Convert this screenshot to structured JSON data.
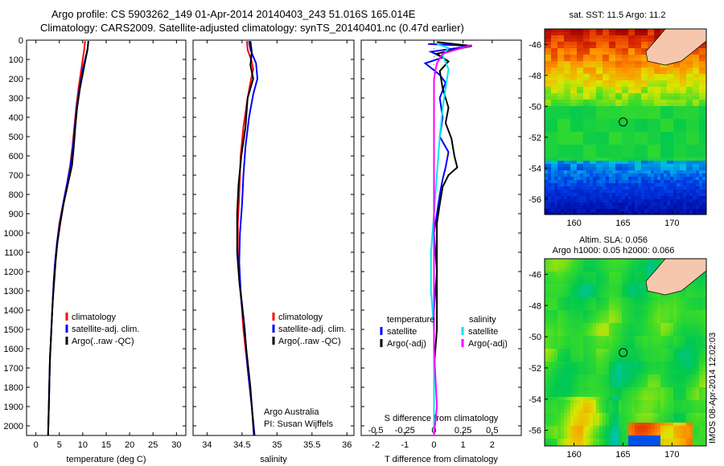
{
  "header": {
    "line1": "Argo profile: CS 5903262_149 01-Apr-2014 20140403_243 51.016S 165.014E",
    "line2": "Climatology: CARS2009. Satellite-adjusted climatology: synTS_20140401.nc (0.47d earlier)"
  },
  "credits": {
    "line1": "Argo Australia",
    "line2": "PI: Susan Wijffels"
  },
  "watermark": "IMOS 08-Apr-2014 12:02:03",
  "colors": {
    "climatology": "#ff0000",
    "satellite": "#0000ff",
    "argo": "#000000",
    "sal_satellite": "#00e5ee",
    "sal_argo": "#ff00ff"
  },
  "depth_ticks": [
    0,
    100,
    200,
    300,
    400,
    500,
    600,
    700,
    800,
    900,
    1000,
    1100,
    1200,
    1300,
    1400,
    1500,
    1600,
    1700,
    1800,
    1900,
    2000
  ],
  "chart_data": [
    {
      "type": "line",
      "id": "temperature",
      "xlabel": "temperature (deg C)",
      "xlim": [
        -2,
        32
      ],
      "ylim": [
        0,
        2050
      ],
      "xticks": [
        0,
        5,
        10,
        15,
        20,
        25,
        30
      ],
      "legend": [
        "climatology",
        "satellite-adj. clim.",
        "Argo(..raw -QC)"
      ],
      "series": [
        {
          "name": "climatology",
          "color": "#ff0000",
          "points": [
            [
              10.5,
              5
            ],
            [
              10.3,
              50
            ],
            [
              9.7,
              150
            ],
            [
              9.1,
              250
            ],
            [
              8.6,
              350
            ],
            [
              8.2,
              450
            ],
            [
              7.8,
              550
            ],
            [
              7.3,
              650
            ],
            [
              6.6,
              750
            ],
            [
              5.8,
              850
            ],
            [
              5.0,
              950
            ],
            [
              4.5,
              1050
            ],
            [
              4.1,
              1150
            ],
            [
              3.8,
              1250
            ],
            [
              3.6,
              1350
            ],
            [
              3.4,
              1450
            ],
            [
              3.2,
              1550
            ],
            [
              3.0,
              1650
            ],
            [
              2.9,
              1750
            ],
            [
              2.8,
              1850
            ],
            [
              2.7,
              1950
            ],
            [
              2.6,
              2050
            ]
          ]
        },
        {
          "name": "satellite-adj. clim.",
          "color": "#0000ff",
          "points": [
            [
              11.2,
              5
            ],
            [
              11.0,
              50
            ],
            [
              10.0,
              150
            ],
            [
              9.3,
              250
            ],
            [
              8.7,
              350
            ],
            [
              8.3,
              450
            ],
            [
              7.9,
              550
            ],
            [
              7.4,
              650
            ],
            [
              6.6,
              750
            ],
            [
              5.8,
              850
            ],
            [
              5.1,
              950
            ],
            [
              4.5,
              1050
            ],
            [
              4.1,
              1150
            ],
            [
              3.8,
              1250
            ],
            [
              3.6,
              1350
            ],
            [
              3.4,
              1450
            ],
            [
              3.2,
              1550
            ],
            [
              3.0,
              1650
            ],
            [
              2.9,
              1750
            ],
            [
              2.8,
              1850
            ],
            [
              2.7,
              1950
            ],
            [
              2.6,
              2050
            ]
          ]
        },
        {
          "name": "Argo(..raw -QC)",
          "color": "#000000",
          "points": [
            [
              11.2,
              5
            ],
            [
              11.0,
              50
            ],
            [
              10.2,
              150
            ],
            [
              9.4,
              250
            ],
            [
              8.8,
              350
            ],
            [
              8.4,
              450
            ],
            [
              8.1,
              550
            ],
            [
              7.7,
              650
            ],
            [
              6.8,
              750
            ],
            [
              5.9,
              850
            ],
            [
              5.2,
              950
            ],
            [
              4.6,
              1050
            ],
            [
              4.2,
              1150
            ],
            [
              3.9,
              1250
            ],
            [
              3.6,
              1350
            ],
            [
              3.4,
              1450
            ],
            [
              3.2,
              1550
            ],
            [
              3.0,
              1650
            ],
            [
              2.9,
              1750
            ],
            [
              2.8,
              1850
            ],
            [
              2.7,
              1950
            ],
            [
              2.6,
              2050
            ]
          ]
        }
      ]
    },
    {
      "type": "line",
      "id": "salinity",
      "xlabel": "salinity",
      "xlim": [
        33.8,
        36.1
      ],
      "ylim": [
        0,
        2050
      ],
      "xticks": [
        34,
        34.5,
        35,
        35.5,
        36
      ],
      "legend": [
        "climatology",
        "satellite-adj. clim.",
        "Argo(..raw -QC)"
      ],
      "series": [
        {
          "name": "climatology",
          "color": "#ff0000",
          "points": [
            [
              34.57,
              5
            ],
            [
              34.58,
              50
            ],
            [
              34.63,
              100
            ],
            [
              34.66,
              150
            ],
            [
              34.63,
              200
            ],
            [
              34.58,
              300
            ],
            [
              34.52,
              450
            ],
            [
              34.48,
              600
            ],
            [
              34.46,
              800
            ],
            [
              34.44,
              950
            ],
            [
              34.44,
              1100
            ],
            [
              34.48,
              1300
            ],
            [
              34.52,
              1500
            ],
            [
              34.58,
              1700
            ],
            [
              34.64,
              1900
            ],
            [
              34.67,
              2050
            ]
          ]
        },
        {
          "name": "satellite-adj. clim.",
          "color": "#0000ff",
          "points": [
            [
              34.6,
              5
            ],
            [
              34.62,
              50
            ],
            [
              34.7,
              120
            ],
            [
              34.72,
              200
            ],
            [
              34.66,
              280
            ],
            [
              34.6,
              400
            ],
            [
              34.55,
              550
            ],
            [
              34.52,
              700
            ],
            [
              34.5,
              850
            ],
            [
              34.47,
              1000
            ],
            [
              34.46,
              1150
            ],
            [
              34.48,
              1300
            ],
            [
              34.54,
              1500
            ],
            [
              34.58,
              1700
            ],
            [
              34.64,
              1900
            ],
            [
              34.68,
              2050
            ]
          ]
        },
        {
          "name": "Argo(..raw -QC)",
          "color": "#000000",
          "points": [
            [
              34.62,
              5
            ],
            [
              34.64,
              60
            ],
            [
              34.62,
              130
            ],
            [
              34.66,
              200
            ],
            [
              34.58,
              300
            ],
            [
              34.55,
              450
            ],
            [
              34.49,
              600
            ],
            [
              34.45,
              750
            ],
            [
              34.43,
              900
            ],
            [
              34.43,
              1000
            ],
            [
              34.43,
              1100
            ],
            [
              34.46,
              1250
            ],
            [
              34.52,
              1450
            ],
            [
              34.56,
              1600
            ],
            [
              34.62,
              1800
            ],
            [
              34.66,
              2000
            ],
            [
              34.67,
              2050
            ]
          ]
        }
      ]
    },
    {
      "type": "line",
      "id": "difference",
      "xlabel": "T difference from climatology",
      "xlabel_top": "S difference from climatology",
      "xlim": [
        -2.5,
        3
      ],
      "ylim": [
        0,
        2050
      ],
      "xticks": [
        -2,
        -1,
        0,
        1,
        2
      ],
      "sticks_labels": [
        "-0.5",
        "-0.25",
        "0",
        "0.25",
        "0.5"
      ],
      "sticks_pos": [
        -2,
        -1,
        0,
        1,
        2
      ],
      "legend_headers": [
        "temperature",
        "salinity"
      ],
      "legend": [
        "satellite",
        "Argo(-adj)",
        "satellite",
        "Argo(-adj)"
      ],
      "series": [
        {
          "name": "T satellite",
          "color": "#0000ff",
          "points": [
            [
              -0.2,
              20
            ],
            [
              1.3,
              30
            ],
            [
              -0.1,
              60
            ],
            [
              0.3,
              90
            ],
            [
              -0.3,
              120
            ],
            [
              0.2,
              180
            ],
            [
              0.4,
              220
            ],
            [
              0.2,
              300
            ],
            [
              0.3,
              400
            ],
            [
              0.2,
              500
            ],
            [
              0.5,
              580
            ],
            [
              0.4,
              660
            ],
            [
              0.3,
              720
            ],
            [
              0.2,
              800
            ],
            [
              0.1,
              900
            ],
            [
              0.0,
              1000
            ],
            [
              0.1,
              1200
            ],
            [
              0.0,
              1400
            ],
            [
              0.0,
              1700
            ],
            [
              0.0,
              2050
            ]
          ]
        },
        {
          "name": "T Argo(-adj)",
          "color": "#000000",
          "points": [
            [
              0.1,
              10
            ],
            [
              1.3,
              30
            ],
            [
              0.1,
              70
            ],
            [
              0.5,
              110
            ],
            [
              0.2,
              160
            ],
            [
              0.3,
              250
            ],
            [
              0.5,
              350
            ],
            [
              0.4,
              430
            ],
            [
              0.6,
              510
            ],
            [
              0.7,
              600
            ],
            [
              0.8,
              660
            ],
            [
              0.5,
              700
            ],
            [
              0.3,
              760
            ],
            [
              0.2,
              850
            ],
            [
              0.1,
              950
            ],
            [
              0.1,
              1100
            ],
            [
              0.1,
              1300
            ],
            [
              0.1,
              1500
            ],
            [
              0.0,
              1700
            ],
            [
              0.0,
              2050
            ]
          ]
        },
        {
          "name": "S satellite",
          "color": "#00e5ee",
          "points": [
            [
              0.1,
              20
            ],
            [
              0.5,
              40
            ],
            [
              0.3,
              80
            ],
            [
              0.5,
              150
            ],
            [
              0.4,
              250
            ],
            [
              0.3,
              350
            ],
            [
              0.2,
              500
            ],
            [
              0.1,
              700
            ],
            [
              0.0,
              900
            ],
            [
              -0.1,
              1100
            ],
            [
              -0.1,
              1300
            ],
            [
              0.0,
              1500
            ],
            [
              0.0,
              1700
            ],
            [
              0.0,
              2050
            ]
          ]
        },
        {
          "name": "S Argo(-adj)",
          "color": "#ff00ff",
          "points": [
            [
              1.3,
              25
            ],
            [
              0.3,
              70
            ],
            [
              0.1,
              120
            ],
            [
              0.0,
              200
            ],
            [
              0.0,
              400
            ],
            [
              0.0,
              600
            ],
            [
              0.0,
              800
            ],
            [
              0.0,
              1000
            ],
            [
              0.0,
              1300
            ],
            [
              0.0,
              1600
            ],
            [
              0.1,
              1900
            ],
            [
              0.0,
              2050
            ]
          ]
        }
      ]
    }
  ],
  "maps": [
    {
      "id": "sst",
      "title": "sat. SST: 11.5 Argo: 11.2",
      "xticks": [
        "160",
        "165",
        "170"
      ],
      "yticks": [
        "-46",
        "-48",
        "-50",
        "-52",
        "-54",
        "-56"
      ],
      "lon_range": [
        157,
        173.5
      ],
      "lat_range": [
        -57,
        -45
      ]
    },
    {
      "id": "sla",
      "title1": "Altim. SLA: 0.056",
      "title2": "Argo h1000: 0.05 h2000: 0.066",
      "xticks": [
        "160",
        "165",
        "170"
      ],
      "yticks": [
        "-46",
        "-48",
        "-50",
        "-52",
        "-54",
        "-56"
      ],
      "lon_range": [
        157,
        173.5
      ],
      "lat_range": [
        -57,
        -45
      ]
    }
  ],
  "float_position": {
    "lon": 165.014,
    "lat": -51.016
  }
}
